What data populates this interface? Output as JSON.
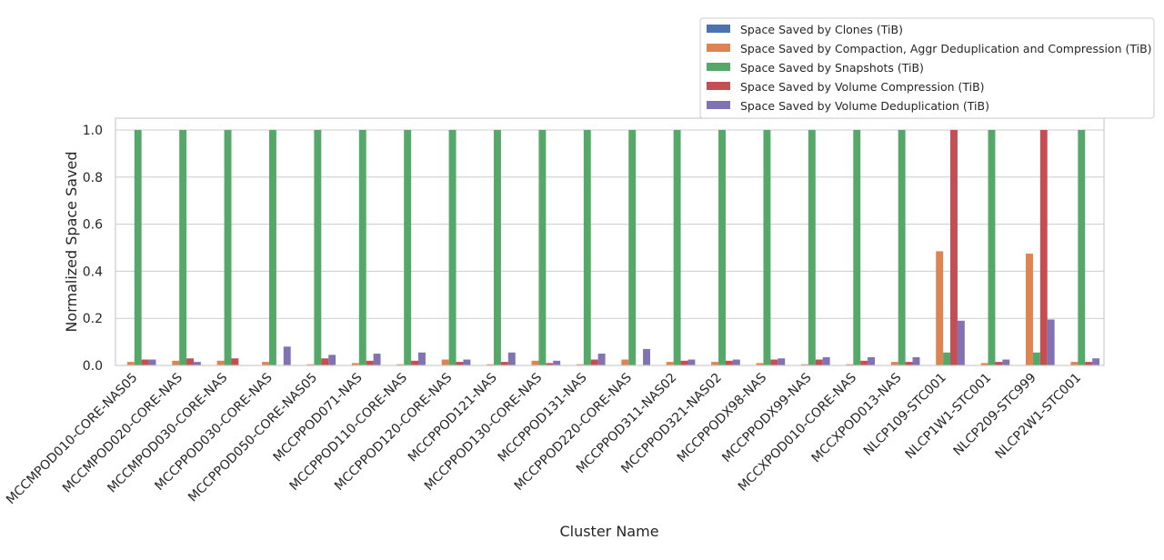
{
  "chart_data": {
    "type": "bar",
    "xlabel": "Cluster Name",
    "ylabel": "Normalized Space Saved",
    "ylim": [
      0,
      1.05
    ],
    "yticks": [
      "0.0",
      "0.2",
      "0.4",
      "0.6",
      "0.8",
      "1.0"
    ],
    "grid": true,
    "legend_position": "top-right",
    "categories": [
      "MCCMPOD010-CORE-NAS05",
      "MCCMPOD020-CORE-NAS",
      "MCCMPOD030-CORE-NAS",
      "MCCPPOD030-CORE-NAS",
      "MCCPPOD050-CORE-NAS05",
      "MCCPPOD071-NAS",
      "MCCPPOD110-CORE-NAS",
      "MCCPPOD120-CORE-NAS",
      "MCCPPOD121-NAS",
      "MCCPPOD130-CORE-NAS",
      "MCCPPOD131-NAS",
      "MCCPPOD220-CORE-NAS",
      "MCCPPOD311-NAS02",
      "MCCPPOD321-NAS02",
      "MCCPPODX98-NAS",
      "MCCPPODX99-NAS",
      "MCCXPOD010-CORE-NAS",
      "MCCXPOD013-NAS",
      "NLCP109-STC001",
      "NLCP1W1-STC001",
      "NLCP209-STC999",
      "NLCP2W1-STC001"
    ],
    "series": [
      {
        "name": "Space Saved by Clones (TiB)",
        "color": "#4c72b0",
        "values": [
          0,
          0,
          0,
          0,
          0,
          0,
          0,
          0,
          0,
          0,
          0,
          0,
          0,
          0,
          0,
          0,
          0,
          0,
          0,
          0,
          0,
          0
        ]
      },
      {
        "name": "Space Saved by Compaction, Aggr Deduplication and Compression (TiB)",
        "color": "#dd8452",
        "values": [
          0.015,
          0.02,
          0.02,
          0.015,
          0.005,
          0.01,
          0.005,
          0.025,
          0.005,
          0.02,
          0.005,
          0.025,
          0.015,
          0.015,
          0.01,
          0.005,
          0.005,
          0.015,
          0.485,
          0.01,
          0.475,
          0.015
        ]
      },
      {
        "name": "Space Saved by Snapshots (TiB)",
        "color": "#55a868",
        "values": [
          1.0,
          1.0,
          1.0,
          1.0,
          1.0,
          1.0,
          1.0,
          1.0,
          1.0,
          1.0,
          1.0,
          1.0,
          1.0,
          1.0,
          1.0,
          1.0,
          1.0,
          1.0,
          0.055,
          1.0,
          0.055,
          1.0
        ]
      },
      {
        "name": "Space Saved by Volume Compression (TiB)",
        "color": "#c44e52",
        "values": [
          0.025,
          0.03,
          0.03,
          0.0,
          0.03,
          0.02,
          0.02,
          0.015,
          0.015,
          0.01,
          0.025,
          0.0,
          0.02,
          0.02,
          0.025,
          0.025,
          0.02,
          0.015,
          1.0,
          0.015,
          1.0,
          0.015
        ]
      },
      {
        "name": "Space Saved by Volume Deduplication (TiB)",
        "color": "#8172b3",
        "values": [
          0.025,
          0.015,
          0.0,
          0.08,
          0.045,
          0.05,
          0.055,
          0.025,
          0.055,
          0.02,
          0.05,
          0.07,
          0.025,
          0.025,
          0.03,
          0.035,
          0.035,
          0.035,
          0.19,
          0.025,
          0.195,
          0.03
        ]
      }
    ]
  }
}
